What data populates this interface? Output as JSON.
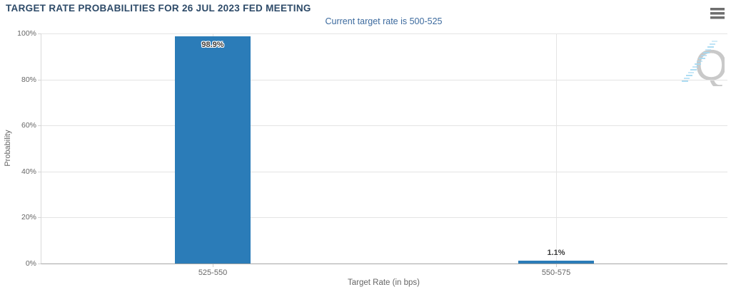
{
  "chart_data": {
    "type": "bar",
    "title": "TARGET RATE PROBABILITIES FOR 26 JUL 2023 FED MEETING",
    "subtitle": "Current target rate is 500-525",
    "categories": [
      "525-550",
      "550-575"
    ],
    "values": [
      98.9,
      1.1
    ],
    "value_labels": [
      "98.9%",
      "1.1%"
    ],
    "xlabel": "Target Rate (in bps)",
    "ylabel": "Probability",
    "ylim": [
      0,
      100
    ],
    "yticks": [
      {
        "value": 0,
        "label": "0%"
      },
      {
        "value": 20,
        "label": "20%"
      },
      {
        "value": 40,
        "label": "40%"
      },
      {
        "value": 60,
        "label": "60%"
      },
      {
        "value": 80,
        "label": "80%"
      },
      {
        "value": 100,
        "label": "100%"
      }
    ],
    "grid": true,
    "legend_position": "none",
    "bar_color": "#2b7cb8"
  },
  "watermark": {
    "letter": "Q"
  },
  "icons": {
    "menu": "hamburger-menu-icon"
  },
  "colors": {
    "title": "#2d4a68",
    "subtitle": "#3c6a9e",
    "bar": "#2b7cb8",
    "axis_text": "#666666",
    "gridline": "#e4e4e4",
    "x_axis_line": "#a5a5a5",
    "y_axis_line": "#d9d9d9",
    "data_label": "#3b3b3b",
    "watermark_gray": "#c9c9c9",
    "watermark_blue": "#a5d9f2"
  }
}
